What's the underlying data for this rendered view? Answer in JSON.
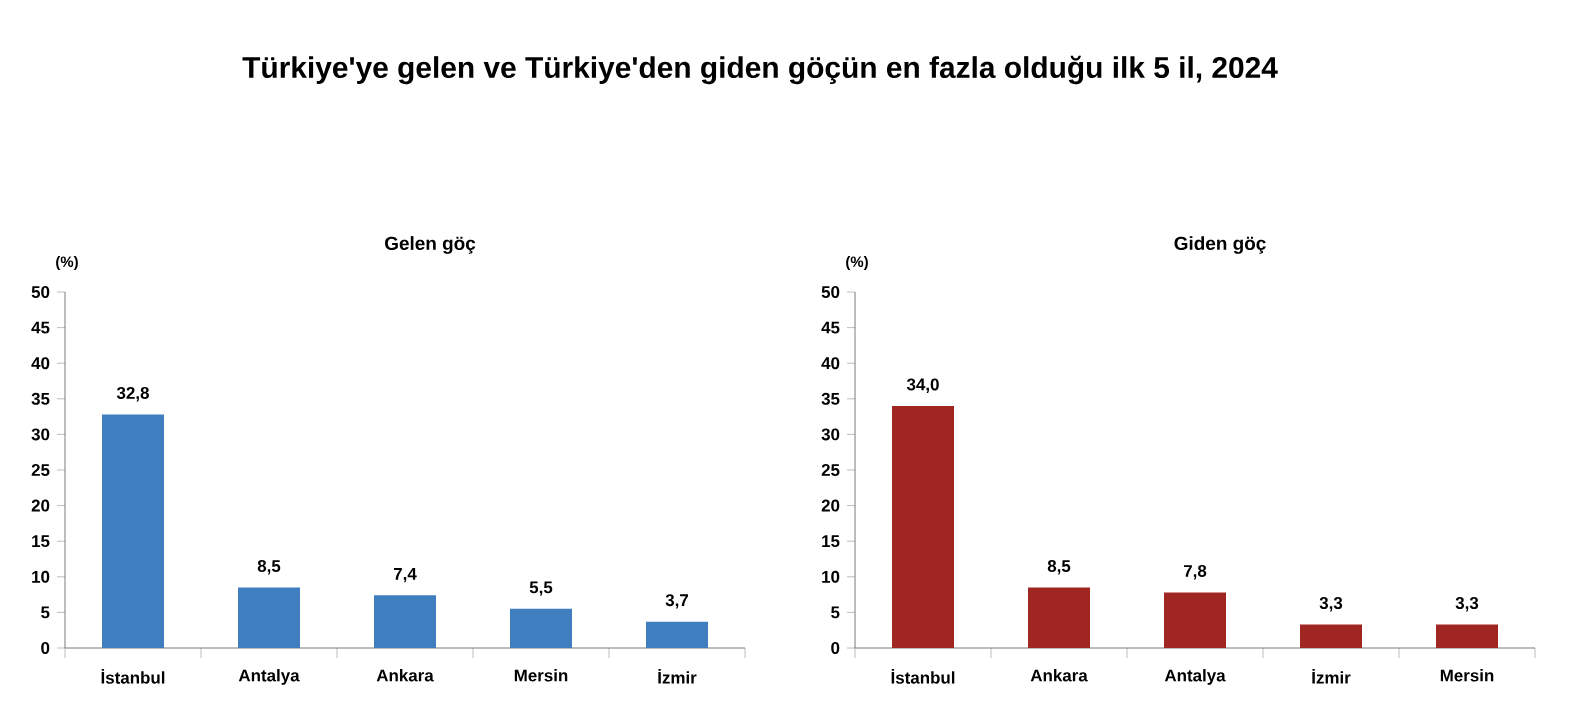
{
  "chart_data": [
    {
      "type": "bar",
      "title": "Türkiye'ye gelen ve Türkiye'den giden göçün en fazla olduğu ilk 5 il, 2024",
      "subtitle": "Gelen göç",
      "ylabel": "(%)",
      "categories": [
        "İstanbul",
        "Antalya",
        "Ankara",
        "Mersin",
        "İzmir"
      ],
      "values": [
        32.8,
        8.5,
        7.4,
        5.5,
        3.7
      ],
      "value_labels": [
        "32,8",
        "8,5",
        "7,4",
        "5,5",
        "3,7"
      ],
      "color": "#3f7fc0",
      "ylim": [
        0,
        50
      ],
      "yticks": [
        0,
        5,
        10,
        15,
        20,
        25,
        30,
        35,
        40,
        45,
        50
      ]
    },
    {
      "type": "bar",
      "subtitle": "Giden göç",
      "ylabel": "(%)",
      "categories": [
        "İstanbul",
        "Ankara",
        "Antalya",
        "İzmir",
        "Mersin"
      ],
      "values": [
        34.0,
        8.5,
        7.8,
        3.3,
        3.3
      ],
      "value_labels": [
        "34,0",
        "8,5",
        "7,8",
        "3,3",
        "3,3"
      ],
      "color": "#a02622",
      "ylim": [
        0,
        50
      ],
      "yticks": [
        0,
        5,
        10,
        15,
        20,
        25,
        30,
        35,
        40,
        45,
        50
      ]
    }
  ]
}
